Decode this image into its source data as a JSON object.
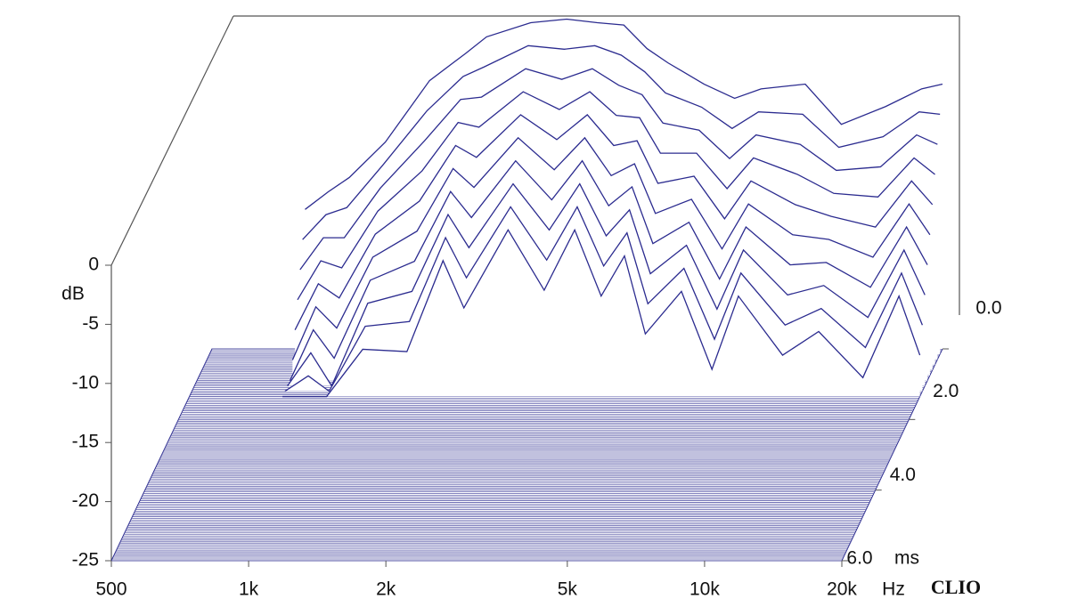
{
  "chart_data": {
    "type": "waterfall",
    "x_unit": "Hz",
    "y_label": "dB",
    "z_unit": "ms",
    "brand": "CLIO",
    "color": "#2b2b8f",
    "xlim": [
      500,
      20000
    ],
    "log_x": true,
    "xticks": [
      {
        "value": 500,
        "label": "500"
      },
      {
        "value": 1000,
        "label": "1k"
      },
      {
        "value": 2000,
        "label": "2k"
      },
      {
        "value": 5000,
        "label": "5k"
      },
      {
        "value": 10000,
        "label": "10k"
      },
      {
        "value": 20000,
        "label": "20k"
      }
    ],
    "ylim": [
      -25,
      0
    ],
    "yticks": [
      0,
      -5,
      -10,
      -15,
      -20,
      -25
    ],
    "zlim": [
      0,
      6
    ],
    "zticks": [
      {
        "value": 0,
        "label": "0.0"
      },
      {
        "value": 2,
        "label": "2.0"
      },
      {
        "value": 4,
        "label": "4.0"
      },
      {
        "value": 6,
        "label": "6.0"
      }
    ],
    "frequencies": [
      800,
      900,
      1000,
      1200,
      1500,
      1800,
      2000,
      2500,
      3000,
      3500,
      4000,
      4500,
      5000,
      6000,
      7000,
      8000,
      10000,
      12000,
      15000,
      18000,
      20000
    ],
    "slices": [
      {
        "t": 0,
        "values": [
          -13.2,
          -11.7,
          -10.5,
          -7.5,
          -2.3,
          0,
          1.4,
          2.6,
          2.9,
          2.6,
          2.4,
          0.4,
          -0.8,
          -2.6,
          -3.8,
          -3.0,
          -2.6,
          -6.0,
          -4.5,
          -3.0,
          -2.6
        ]
      },
      {
        "t": 0.15,
        "values": [
          -15.3,
          -13.2,
          -12.6,
          -9.0,
          -4.4,
          -1.5,
          -0.7,
          1.1,
          0.8,
          1.1,
          0.3,
          -1.1,
          -2.9,
          -4.1,
          -5.9,
          -4.5,
          -4.7,
          -7.5,
          -6.6,
          -4.5,
          -4.7
        ]
      },
      {
        "t": 0.3,
        "values": [
          -17.4,
          -14.7,
          -14.7,
          -10.5,
          -6.5,
          -3.0,
          -2.8,
          -0.4,
          -1.3,
          -0.4,
          -1.8,
          -2.6,
          -5.0,
          -5.6,
          -8.0,
          -6.0,
          -6.8,
          -9.0,
          -8.7,
          -6.0,
          -6.8
        ]
      },
      {
        "t": 0.45,
        "values": [
          -19.5,
          -16.2,
          -16.8,
          -12.0,
          -8.6,
          -4.5,
          -4.9,
          -1.9,
          -3.4,
          -1.9,
          -3.9,
          -4.1,
          -7.1,
          -7.1,
          -10.1,
          -7.5,
          -8.9,
          -10.5,
          -10.8,
          -7.5,
          -8.9
        ]
      },
      {
        "t": 0.6,
        "values": [
          -21.6,
          -17.7,
          -18.9,
          -13.5,
          -10.7,
          -6.0,
          -7.0,
          -3.4,
          -5.5,
          -3.4,
          -6.0,
          -5.6,
          -9.2,
          -8.6,
          -12.2,
          -9.0,
          -11.0,
          -12.0,
          -12.9,
          -9.0,
          -11.0
        ]
      },
      {
        "t": 0.75,
        "values": [
          -23.7,
          -19.2,
          -21.0,
          -15.0,
          -12.8,
          -7.5,
          -9.1,
          -4.9,
          -7.6,
          -4.9,
          -8.1,
          -7.1,
          -11.3,
          -10.1,
          -14.3,
          -10.5,
          -13.1,
          -13.5,
          -15.0,
          -10.5,
          -13.1
        ]
      },
      {
        "t": 0.9,
        "values": [
          -25,
          -20.7,
          -23.1,
          -16.5,
          -14.9,
          -9.0,
          -11.2,
          -6.4,
          -9.7,
          -6.4,
          -10.2,
          -8.6,
          -13.4,
          -11.6,
          -16.4,
          -12.0,
          -15.2,
          -15.0,
          -17.1,
          -12.0,
          -15.2
        ]
      },
      {
        "t": 1.05,
        "values": [
          -25,
          -22.2,
          -25,
          -18.0,
          -17.0,
          -10.5,
          -13.3,
          -7.9,
          -11.8,
          -7.9,
          -12.3,
          -10.1,
          -15.5,
          -13.1,
          -18.5,
          -13.5,
          -17.3,
          -16.5,
          -19.2,
          -13.5,
          -17.3
        ]
      },
      {
        "t": 1.2,
        "values": [
          -25,
          -23.7,
          -25,
          -19.5,
          -19.1,
          -12.0,
          -15.4,
          -9.4,
          -13.9,
          -9.4,
          -14.4,
          -11.6,
          -17.6,
          -14.6,
          -20.6,
          -15.0,
          -19.4,
          -18.0,
          -21.3,
          -15.0,
          -19.4
        ]
      },
      {
        "t": 1.35,
        "values": [
          -25,
          -25,
          -25,
          -21.0,
          -21.2,
          -13.5,
          -17.5,
          -10.9,
          -16.0,
          -10.9,
          -16.5,
          -13.1,
          -19.7,
          -16.1,
          -22.7,
          -16.5,
          -21.5,
          -19.5,
          -23.4,
          -16.5,
          -21.5
        ]
      }
    ]
  }
}
